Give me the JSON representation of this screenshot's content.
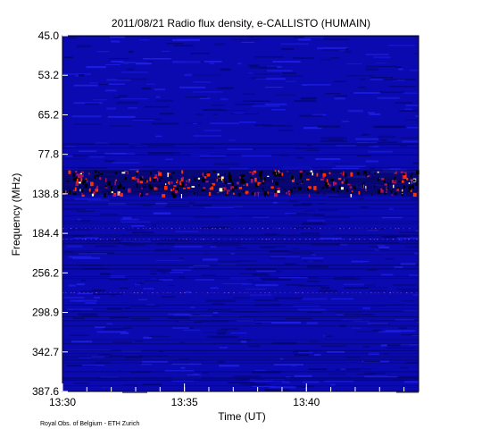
{
  "chart_data": {
    "type": "heatmap",
    "title": "2011/08/21  Radio flux density, e-CALLISTO (HUMAIN)",
    "xlabel": "Time (UT)",
    "ylabel": "Frequency (MHz)",
    "x_ticks": [
      {
        "label": "13:30",
        "minutes": 0
      },
      {
        "label": "13:35",
        "minutes": 5
      },
      {
        "label": "13:40",
        "minutes": 10
      }
    ],
    "xlim_minutes": [
      0,
      14.6
    ],
    "y_ticks": [
      "45.0",
      "53.2",
      "65.2",
      "77.8",
      "138.8",
      "184.4",
      "256.2",
      "298.9",
      "342.7",
      "387.6"
    ],
    "credit": "Royal Obs. of Belgium - ETH Zurich",
    "colors": {
      "background": "#0a0ab0",
      "dark_band": "#000050",
      "hot": "#ff3000",
      "peak": "#ffffc0",
      "axis": "#000000"
    },
    "features": {
      "interference_band_label": "138.8",
      "interference_band_position": "between 77.8 and 138.8 ticks"
    }
  }
}
